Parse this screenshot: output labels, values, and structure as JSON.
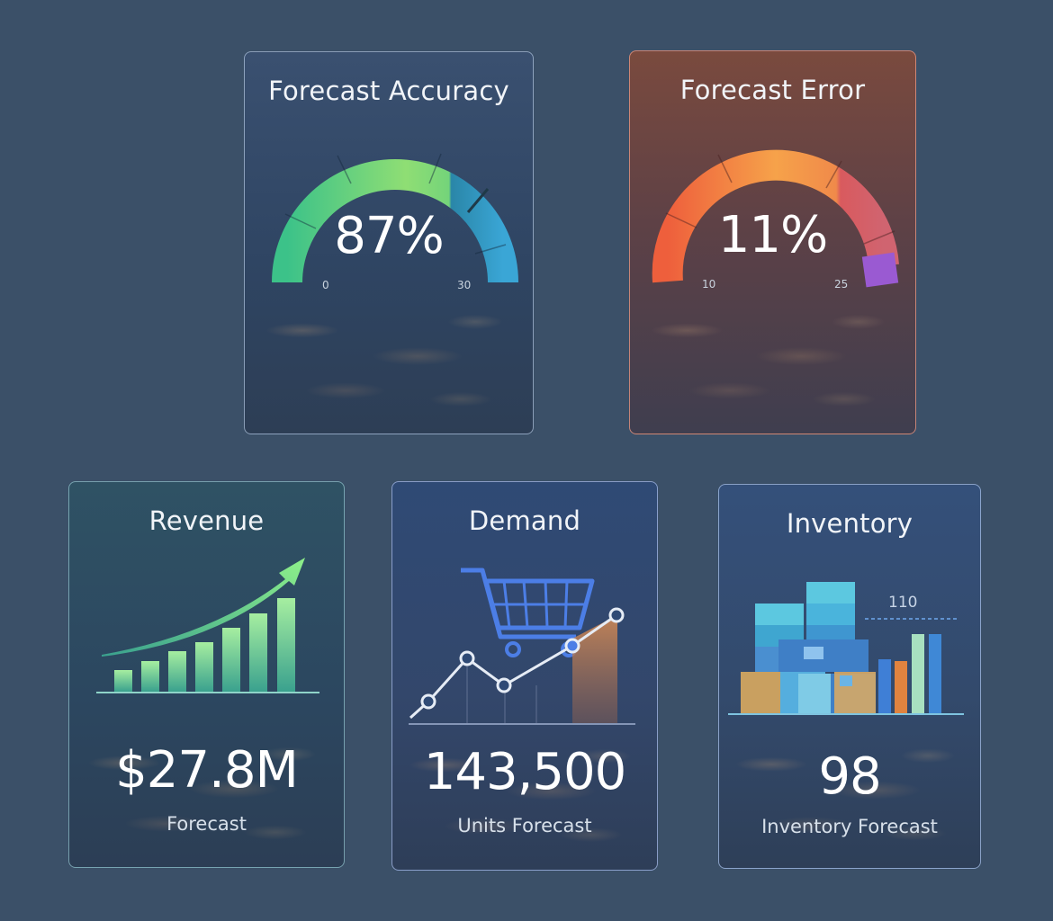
{
  "cards": {
    "accuracy": {
      "title": "Forecast Accuracy",
      "value": "87%",
      "min_label": "0",
      "max_label": "30",
      "level": 0.87
    },
    "error": {
      "title": "Forecast Error",
      "value": "11%",
      "min_label": "10",
      "max_label": "25",
      "level": 0.11
    },
    "revenue": {
      "title": "Revenue",
      "value": "$27.8M",
      "caption": "Forecast"
    },
    "demand": {
      "title": "Demand",
      "value": "143,500",
      "caption": "Units Forecast"
    },
    "inventory": {
      "title": "Inventory",
      "value": "98",
      "caption": "Inventory Forecast",
      "chart_label": "110"
    }
  },
  "colors": {
    "background": "#3b5068",
    "accuracy_gauge": [
      "#3cc289",
      "#8fde74",
      "#2f9cc4"
    ],
    "error_gauge": [
      "#ee6a3f",
      "#f5a04a",
      "#d9585c",
      "#9a5ad2"
    ],
    "revenue_bars": "#6fd7b4",
    "demand_accent": "#4c7ee6",
    "inventory_accent": "#5cc8e0"
  },
  "icons": {
    "revenue": "trend-up-arrow-icon",
    "demand": "shopping-cart-icon",
    "inventory": "stacked-boxes-icon"
  }
}
